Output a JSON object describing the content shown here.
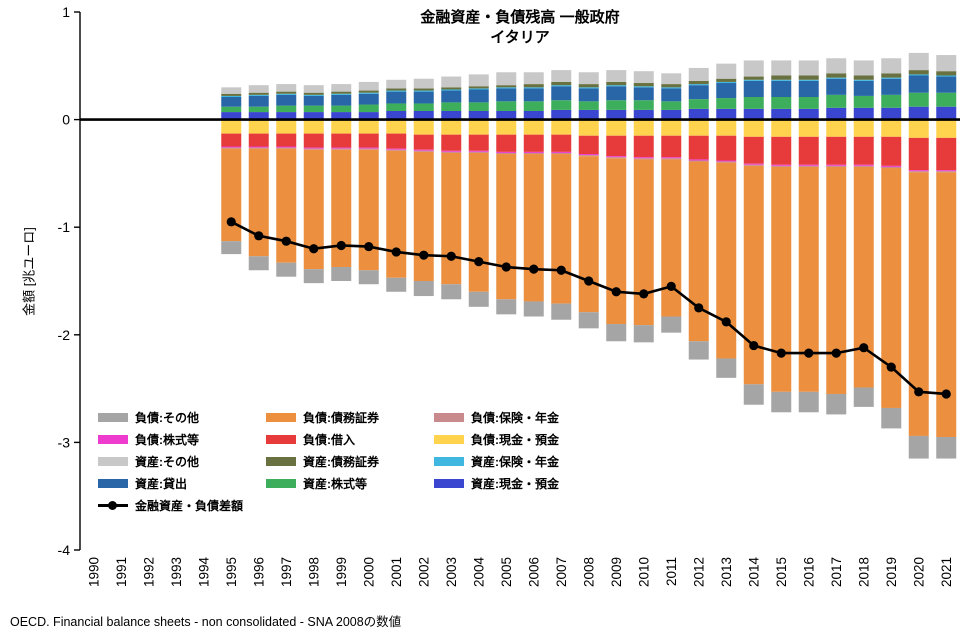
{
  "source_note": "OECD. Financial balance sheets - non consolidated - SNA 2008の数値",
  "chart_data": {
    "type": "bar",
    "stacked": true,
    "title": "金融資産・負債残高 一般政府",
    "subtitle": "イタリア",
    "ylabel": "金額 [兆ユーロ]",
    "ylim": [
      -4,
      1
    ],
    "yticks": [
      1,
      0,
      -1,
      -2,
      -3,
      -4
    ],
    "grid": false,
    "legend_position": "inside-lower-left",
    "x_axis_years": [
      1990,
      1991,
      1992,
      1993,
      1994,
      1995,
      1996,
      1997,
      1998,
      1999,
      2000,
      2001,
      2002,
      2003,
      2004,
      2005,
      2006,
      2007,
      2008,
      2009,
      2010,
      2011,
      2012,
      2013,
      2014,
      2015,
      2016,
      2017,
      2018,
      2019,
      2020,
      2021
    ],
    "data_years": [
      1995,
      1996,
      1997,
      1998,
      1999,
      2000,
      2001,
      2002,
      2003,
      2004,
      2005,
      2006,
      2007,
      2008,
      2009,
      2010,
      2011,
      2012,
      2013,
      2014,
      2015,
      2016,
      2017,
      2018,
      2019,
      2020,
      2021
    ],
    "series_assets_bottom_to_top": [
      {
        "name": "資産:現金・預金",
        "color": "#3a45d0",
        "values": [
          0.07,
          0.07,
          0.07,
          0.07,
          0.07,
          0.07,
          0.08,
          0.08,
          0.08,
          0.08,
          0.08,
          0.08,
          0.09,
          0.09,
          0.09,
          0.09,
          0.09,
          0.1,
          0.1,
          0.1,
          0.1,
          0.1,
          0.11,
          0.11,
          0.11,
          0.12,
          0.12
        ]
      },
      {
        "name": "資産:株式等",
        "color": "#3cae5c",
        "values": [
          0.05,
          0.05,
          0.06,
          0.06,
          0.06,
          0.07,
          0.07,
          0.07,
          0.08,
          0.08,
          0.09,
          0.09,
          0.09,
          0.08,
          0.09,
          0.09,
          0.08,
          0.09,
          0.1,
          0.11,
          0.11,
          0.11,
          0.12,
          0.11,
          0.12,
          0.13,
          0.13
        ]
      },
      {
        "name": "資産:貸出",
        "color": "#2866a8",
        "values": [
          0.09,
          0.1,
          0.1,
          0.09,
          0.1,
          0.1,
          0.11,
          0.11,
          0.11,
          0.12,
          0.12,
          0.12,
          0.13,
          0.12,
          0.13,
          0.12,
          0.12,
          0.13,
          0.14,
          0.15,
          0.15,
          0.15,
          0.15,
          0.14,
          0.15,
          0.16,
          0.15
        ]
      },
      {
        "name": "資産:保険・年金",
        "color": "#3fb7e0",
        "values": [
          0.01,
          0.01,
          0.01,
          0.01,
          0.01,
          0.01,
          0.01,
          0.01,
          0.01,
          0.01,
          0.01,
          0.01,
          0.01,
          0.01,
          0.01,
          0.01,
          0.01,
          0.01,
          0.01,
          0.01,
          0.01,
          0.01,
          0.01,
          0.01,
          0.01,
          0.01,
          0.01
        ]
      },
      {
        "name": "資産:債務証券",
        "color": "#68713f",
        "values": [
          0.02,
          0.02,
          0.02,
          0.02,
          0.02,
          0.02,
          0.02,
          0.02,
          0.02,
          0.02,
          0.02,
          0.03,
          0.03,
          0.03,
          0.03,
          0.03,
          0.03,
          0.03,
          0.03,
          0.03,
          0.04,
          0.04,
          0.04,
          0.04,
          0.04,
          0.04,
          0.04
        ]
      },
      {
        "name": "資産:その他",
        "color": "#c8c8c8",
        "values": [
          0.06,
          0.07,
          0.07,
          0.07,
          0.07,
          0.08,
          0.08,
          0.09,
          0.1,
          0.11,
          0.12,
          0.11,
          0.11,
          0.11,
          0.11,
          0.11,
          0.1,
          0.12,
          0.14,
          0.15,
          0.14,
          0.14,
          0.14,
          0.14,
          0.14,
          0.16,
          0.15
        ]
      }
    ],
    "series_liabilities_top_to_bottom": [
      {
        "name": "負債:現金・預金",
        "color": "#ffd34d",
        "values": [
          0.13,
          0.13,
          0.13,
          0.13,
          0.13,
          0.13,
          0.13,
          0.14,
          0.14,
          0.14,
          0.14,
          0.14,
          0.14,
          0.15,
          0.15,
          0.15,
          0.15,
          0.15,
          0.15,
          0.16,
          0.16,
          0.16,
          0.16,
          0.16,
          0.16,
          0.17,
          0.17
        ]
      },
      {
        "name": "負債:借入",
        "color": "#e73b3b",
        "values": [
          0.12,
          0.12,
          0.12,
          0.13,
          0.13,
          0.13,
          0.14,
          0.14,
          0.15,
          0.15,
          0.16,
          0.16,
          0.16,
          0.17,
          0.19,
          0.2,
          0.2,
          0.22,
          0.23,
          0.25,
          0.26,
          0.26,
          0.26,
          0.26,
          0.27,
          0.3,
          0.3
        ]
      },
      {
        "name": "負債:株式等",
        "color": "#ee3ccf",
        "values": [
          0.01,
          0.01,
          0.01,
          0.01,
          0.01,
          0.01,
          0.01,
          0.01,
          0.01,
          0.01,
          0.01,
          0.01,
          0.01,
          0.01,
          0.01,
          0.01,
          0.01,
          0.01,
          0.01,
          0.01,
          0.01,
          0.01,
          0.01,
          0.01,
          0.01,
          0.01,
          0.01
        ]
      },
      {
        "name": "負債:保険・年金",
        "color": "#c98a8d",
        "values": [
          0.01,
          0.01,
          0.01,
          0.01,
          0.01,
          0.01,
          0.01,
          0.01,
          0.01,
          0.01,
          0.01,
          0.01,
          0.01,
          0.01,
          0.01,
          0.01,
          0.01,
          0.01,
          0.01,
          0.01,
          0.01,
          0.01,
          0.01,
          0.01,
          0.01,
          0.01,
          0.01
        ]
      },
      {
        "name": "負債:債務証券",
        "color": "#ec9040",
        "values": [
          0.86,
          1.0,
          1.06,
          1.11,
          1.09,
          1.12,
          1.18,
          1.2,
          1.22,
          1.29,
          1.35,
          1.37,
          1.39,
          1.45,
          1.54,
          1.54,
          1.46,
          1.67,
          1.82,
          2.03,
          2.09,
          2.09,
          2.11,
          2.05,
          2.23,
          2.45,
          2.46
        ]
      },
      {
        "name": "負債:その他",
        "color": "#a5a5a5",
        "values": [
          0.12,
          0.13,
          0.13,
          0.13,
          0.13,
          0.13,
          0.13,
          0.14,
          0.14,
          0.14,
          0.14,
          0.14,
          0.15,
          0.15,
          0.16,
          0.16,
          0.15,
          0.17,
          0.18,
          0.19,
          0.19,
          0.19,
          0.19,
          0.18,
          0.19,
          0.21,
          0.2
        ]
      }
    ],
    "net_line": {
      "name": "金融資産・負債差額",
      "color": "#000000",
      "values": [
        -0.95,
        -1.08,
        -1.13,
        -1.2,
        -1.17,
        -1.18,
        -1.23,
        -1.26,
        -1.27,
        -1.32,
        -1.37,
        -1.39,
        -1.4,
        -1.5,
        -1.6,
        -1.62,
        -1.55,
        -1.75,
        -1.88,
        -2.1,
        -2.17,
        -2.17,
        -2.17,
        -2.12,
        -2.3,
        -2.53,
        -2.55
      ]
    },
    "legend_items": [
      {
        "label": "負債:その他",
        "color": "#a5a5a5",
        "swatch": "bar"
      },
      {
        "label": "負債:債務証券",
        "color": "#ec9040",
        "swatch": "bar"
      },
      {
        "label": "負債:保険・年金",
        "color": "#c98a8d",
        "swatch": "bar"
      },
      {
        "label": "負債:株式等",
        "color": "#ee3ccf",
        "swatch": "bar"
      },
      {
        "label": "負債:借入",
        "color": "#e73b3b",
        "swatch": "bar"
      },
      {
        "label": "負債:現金・預金",
        "color": "#ffd34d",
        "swatch": "bar"
      },
      {
        "label": "資産:その他",
        "color": "#c8c8c8",
        "swatch": "bar"
      },
      {
        "label": "資産:債務証券",
        "color": "#68713f",
        "swatch": "bar"
      },
      {
        "label": "資産:保険・年金",
        "color": "#3fb7e0",
        "swatch": "bar"
      },
      {
        "label": "資産:貸出",
        "color": "#2866a8",
        "swatch": "bar"
      },
      {
        "label": "資産:株式等",
        "color": "#3cae5c",
        "swatch": "bar"
      },
      {
        "label": "資産:現金・預金",
        "color": "#3a45d0",
        "swatch": "bar"
      },
      {
        "label": "金融資産・負債差額",
        "color": "#000000",
        "swatch": "line"
      }
    ]
  }
}
